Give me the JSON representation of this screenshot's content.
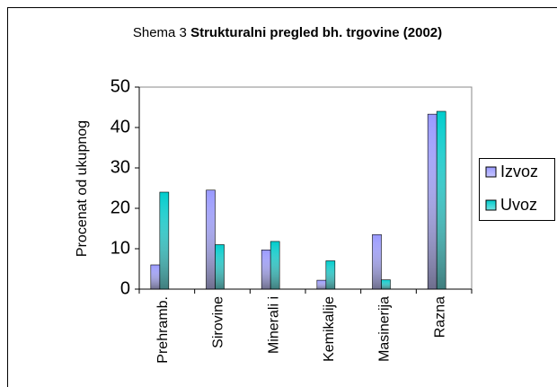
{
  "chart_data": {
    "type": "bar",
    "figure_label": "Shema 3",
    "title": "Strukturalni pregled bh. trgovine (2002)",
    "y_label": "Procenat od ukupnog",
    "categories": [
      "Prehramb.",
      "Sirovine",
      "Minerali i",
      "Kemikalije",
      "Masinerija",
      "Razna"
    ],
    "series": [
      {
        "name": "Izvoz",
        "color": "#9999ff",
        "values": [
          6,
          24.5,
          9.7,
          2.2,
          13.5,
          43.3
        ]
      },
      {
        "name": "Uvoz",
        "color": "#00cccc",
        "values": [
          24,
          11,
          11.8,
          7,
          2.3,
          44
        ]
      }
    ],
    "ylim": [
      0,
      50
    ],
    "yticks": [
      0,
      10,
      20,
      30,
      40,
      50
    ],
    "grid": false,
    "legend": "right"
  }
}
